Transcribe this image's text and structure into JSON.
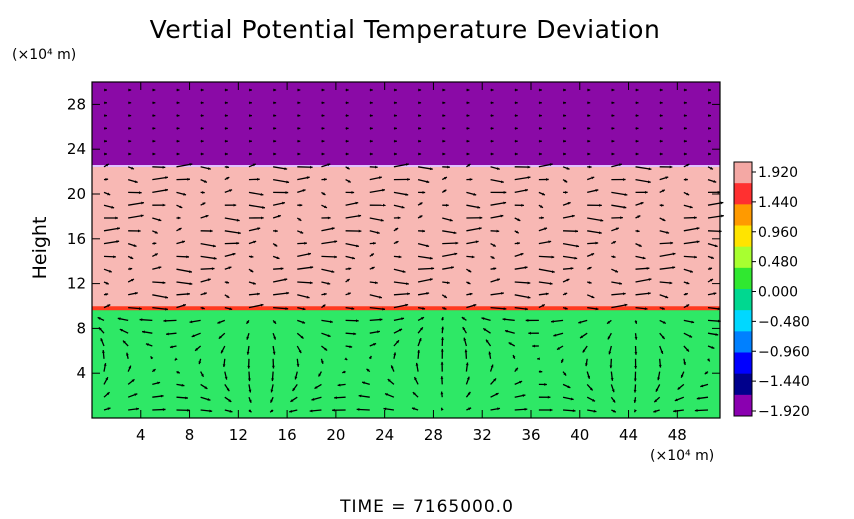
{
  "chart_data": {
    "type": "heatmap",
    "title": "Vertial Potential Temperature Deviation",
    "ylabel": "Height",
    "y_unit": "(×10⁴ m)",
    "x_unit": "(×10⁴ m)",
    "x_ticks": [
      "4",
      "8",
      "12",
      "16",
      "20",
      "24",
      "28",
      "32",
      "36",
      "40",
      "44",
      "48"
    ],
    "y_ticks": [
      "4",
      "8",
      "12",
      "16",
      "20",
      "24",
      "28"
    ],
    "xlim": [
      0,
      51.5
    ],
    "ylim": [
      0,
      30
    ],
    "colorbar": {
      "labels": [
        "1.920",
        "1.440",
        "0.960",
        "0.480",
        "0.000",
        "−0.480",
        "−0.960",
        "−1.440",
        "−1.920"
      ],
      "range": [
        -1.92,
        1.92
      ],
      "colors": [
        "#f4a8a4",
        "#ff3030",
        "#ff9a00",
        "#ffe400",
        "#a8ff30",
        "#30e830",
        "#00d890",
        "#00d8ff",
        "#0080ff",
        "#0000ff",
        "#00008c",
        "#8a00b0"
      ]
    },
    "layers": [
      {
        "from_height": 22.5,
        "to_height": 30,
        "value": -1.92
      },
      {
        "from_height": 9.8,
        "to_height": 22.5,
        "value": 1.92
      },
      {
        "from_height": 0,
        "to_height": 9.8,
        "value": 0.0
      }
    ],
    "vector_overlay": true,
    "time_label": "TIME  =  7165000.0"
  },
  "colors": {
    "upper_layer": "#8a0aa6",
    "middle_layer": "#f8b8b4",
    "lower_layer": "#2ee866",
    "interface_line": "#ff3a20"
  }
}
